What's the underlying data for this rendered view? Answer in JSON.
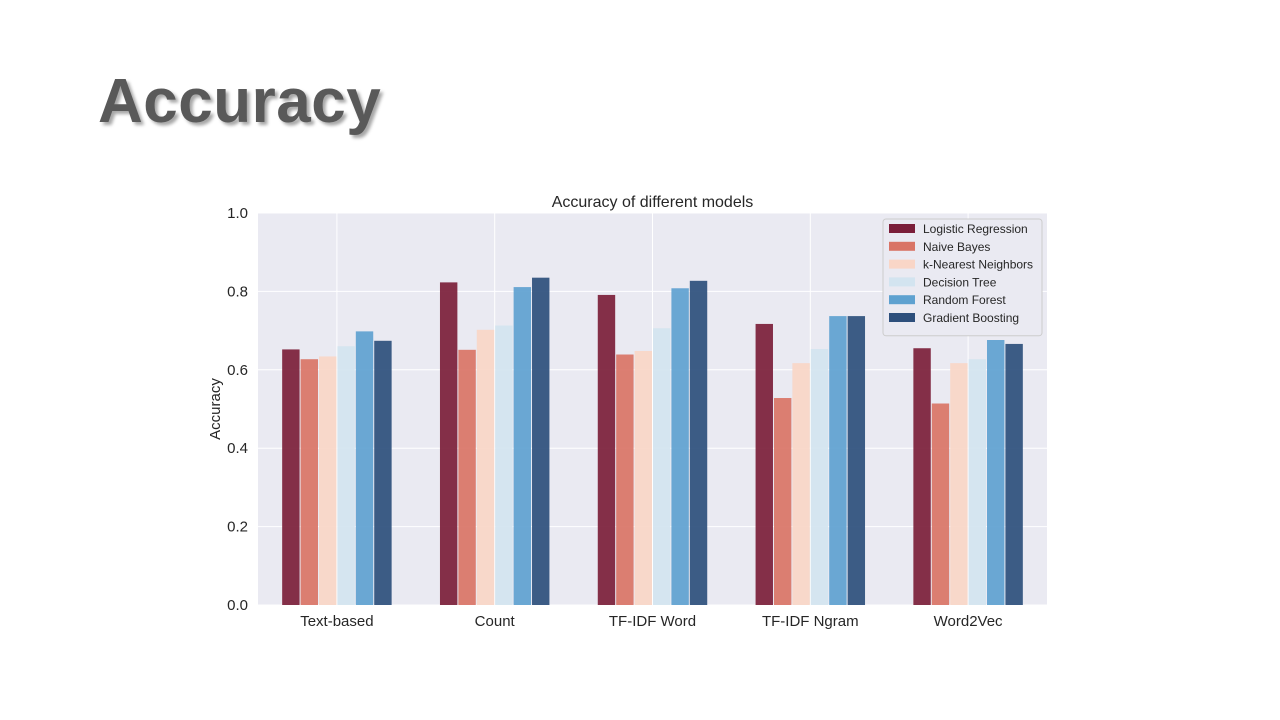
{
  "slide": {
    "title": "Accuracy"
  },
  "chart_data": {
    "type": "bar",
    "title": "Accuracy of different models",
    "xlabel": "",
    "ylabel": "Accuracy",
    "ylim": [
      0,
      1.0
    ],
    "yticks": [
      "0.0",
      "0.2",
      "0.4",
      "0.6",
      "0.8",
      "1.0"
    ],
    "grid": true,
    "legend_position": "top-right",
    "categories": [
      "Text-based",
      "Count",
      "TF-IDF Word",
      "TF-IDF Ngram",
      "Word2Vec"
    ],
    "series": [
      {
        "name": "Logistic Regression",
        "color": "#7b1e3a",
        "values": [
          0.652,
          0.823,
          0.791,
          0.717,
          0.655
        ]
      },
      {
        "name": "Naive Bayes",
        "color": "#d97466",
        "values": [
          0.627,
          0.651,
          0.639,
          0.528,
          0.514
        ]
      },
      {
        "name": "k-Nearest Neighbors",
        "color": "#f9d6c7",
        "values": [
          0.634,
          0.702,
          0.648,
          0.617,
          0.617
        ]
      },
      {
        "name": "Decision Tree",
        "color": "#d3e4f0",
        "values": [
          0.66,
          0.713,
          0.706,
          0.653,
          0.627
        ]
      },
      {
        "name": "Random Forest",
        "color": "#5ea1d0",
        "values": [
          0.698,
          0.811,
          0.808,
          0.737,
          0.676
        ]
      },
      {
        "name": "Gradient Boosting",
        "color": "#2d4f7c",
        "values": [
          0.674,
          0.835,
          0.827,
          0.737,
          0.666
        ]
      }
    ]
  }
}
